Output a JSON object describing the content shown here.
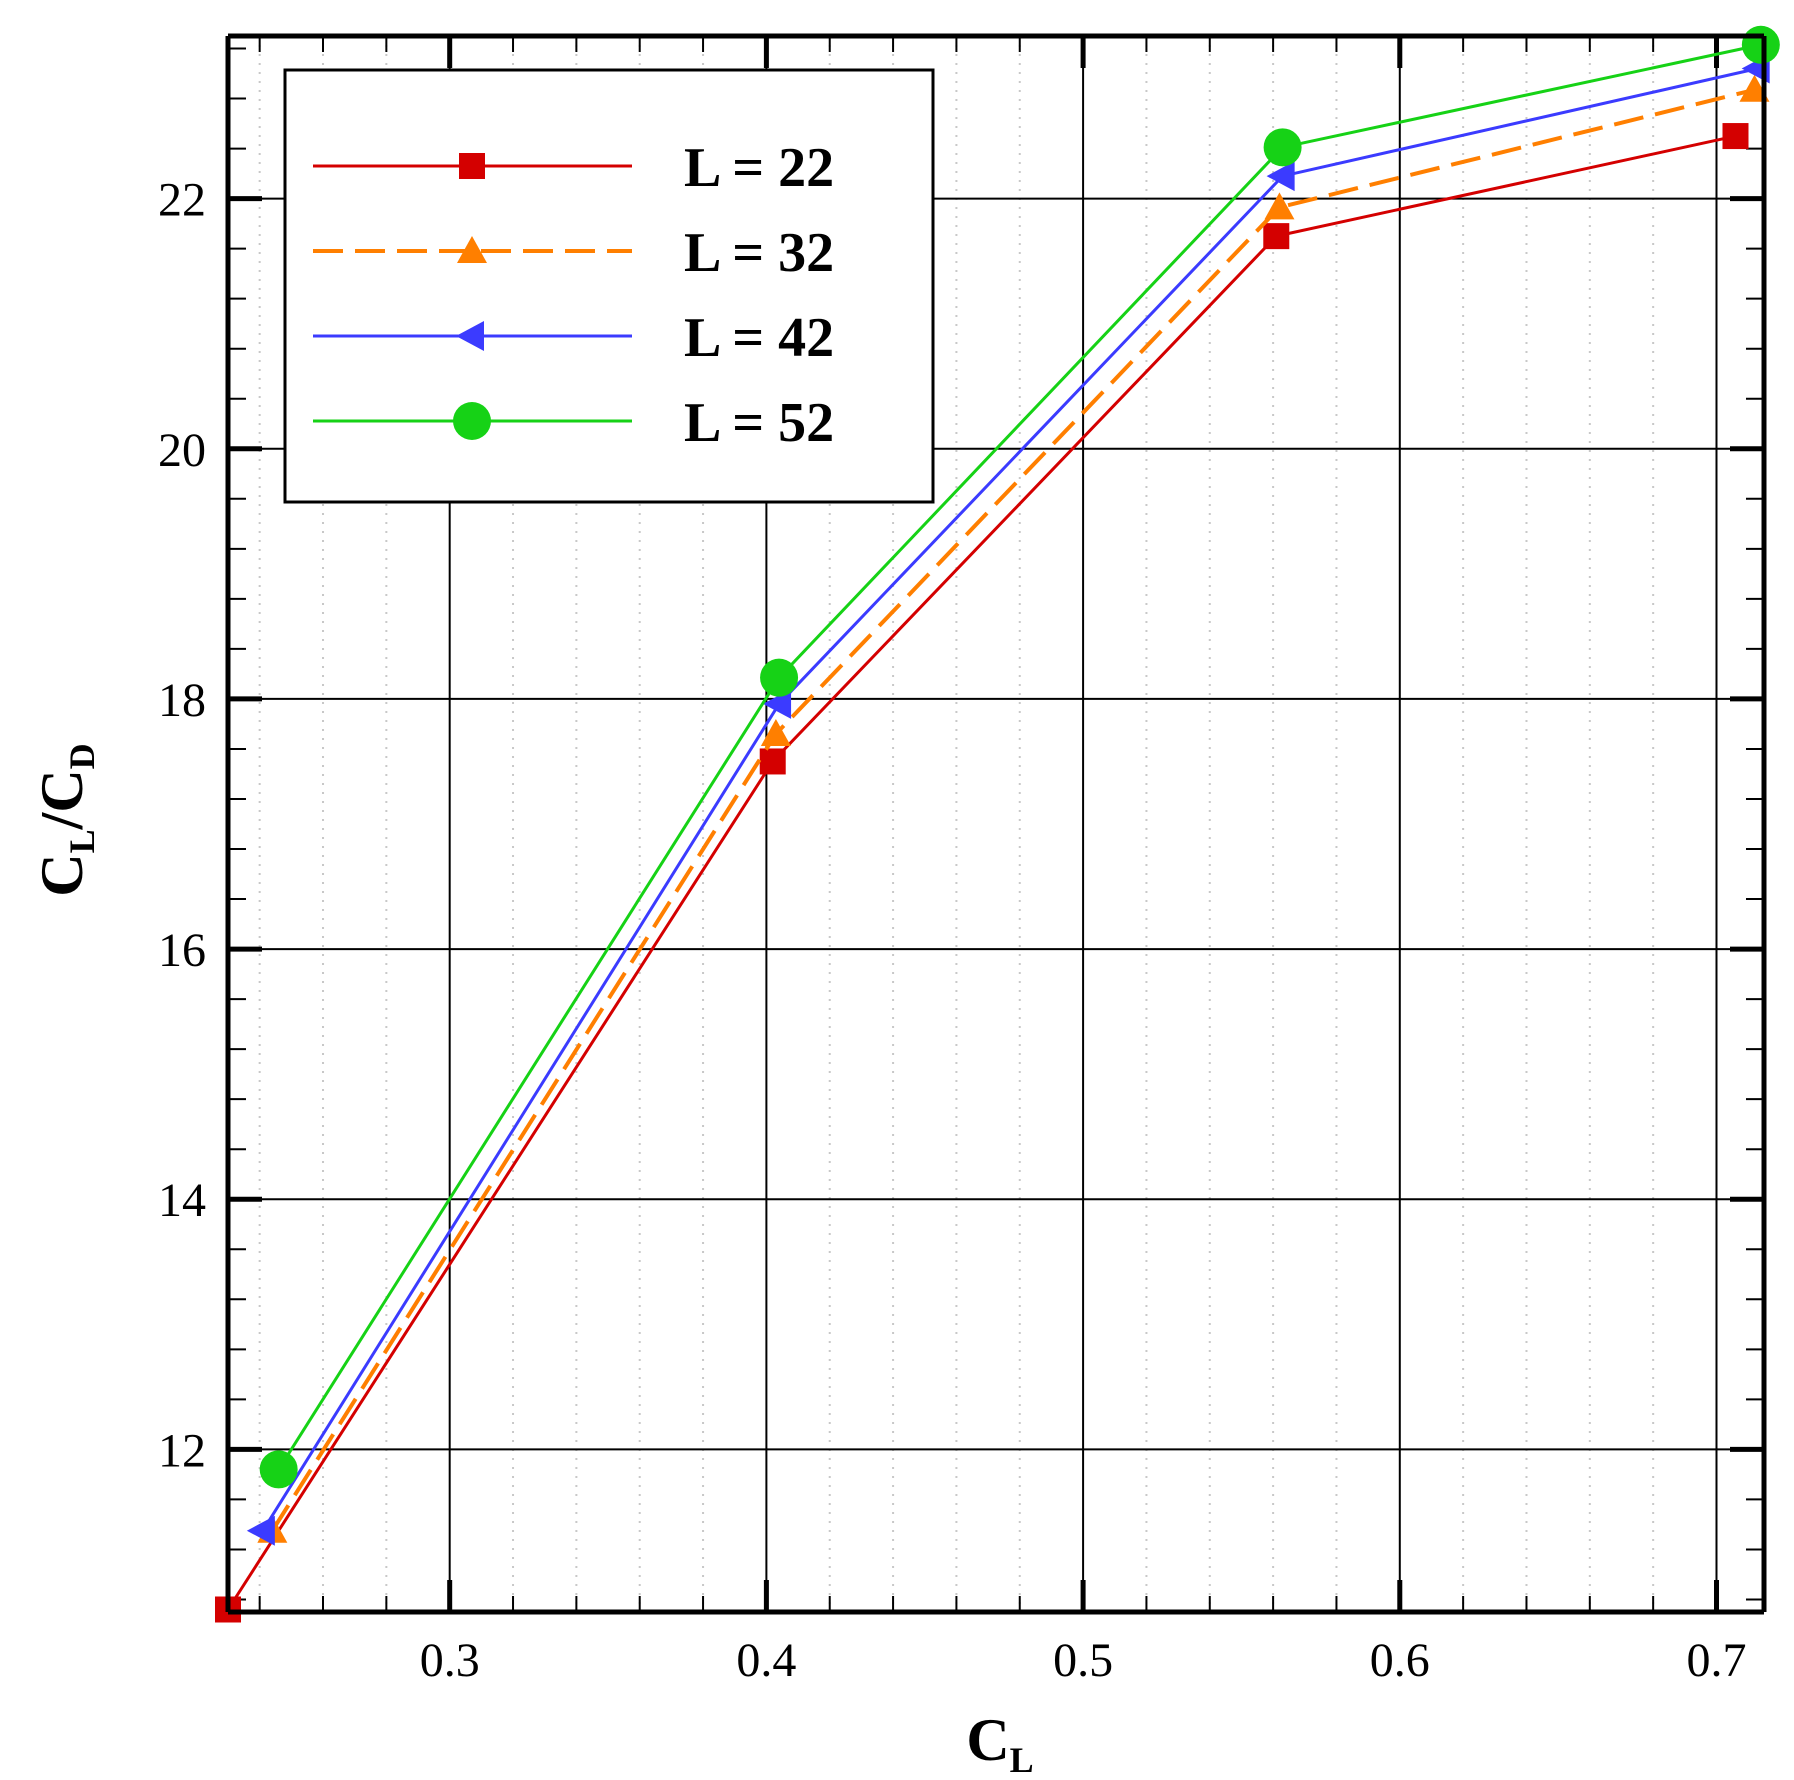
{
  "chart_data": {
    "type": "line",
    "xlabel": {
      "main": "C",
      "sub": "L"
    },
    "ylabel": {
      "num_main": "C",
      "num_sub": "L",
      "den_main": "C",
      "den_sub": "D"
    },
    "xlim": [
      0.23,
      0.715
    ],
    "ylim": [
      10.7,
      23.3
    ],
    "xticks": [
      0.3,
      0.4,
      0.5,
      0.6,
      0.7
    ],
    "xtick_labels": [
      "0.3",
      "0.4",
      "0.5",
      "0.6",
      "0.7"
    ],
    "xminor_step": 0.02,
    "yticks": [
      12,
      14,
      16,
      18,
      20,
      22
    ],
    "ytick_labels": [
      "12",
      "14",
      "16",
      "18",
      "20",
      "22"
    ],
    "yminor_step": 0.4,
    "grid": true,
    "legend_position": "top-left",
    "series": [
      {
        "name": "L = 22",
        "color": "#d40000",
        "marker": "square",
        "dash": "solid",
        "x": [
          0.23,
          0.402,
          0.561,
          0.706
        ],
        "y": [
          10.72,
          17.5,
          21.7,
          22.5
        ]
      },
      {
        "name": "L = 32",
        "color": "#ff7f00",
        "marker": "triangle-up",
        "dash": "dashed",
        "x": [
          0.244,
          0.403,
          0.562,
          0.712
        ],
        "y": [
          11.35,
          17.72,
          21.93,
          22.87
        ]
      },
      {
        "name": "L = 42",
        "color": "#3b3bff",
        "marker": "triangle-left",
        "dash": "solid",
        "x": [
          0.241,
          0.404,
          0.563,
          0.713
        ],
        "y": [
          11.35,
          17.96,
          22.18,
          23.04
        ]
      },
      {
        "name": "L = 52",
        "color": "#16d216",
        "marker": "circle",
        "dash": "solid",
        "x": [
          0.246,
          0.404,
          0.563,
          0.714
        ],
        "y": [
          11.84,
          18.17,
          22.41,
          23.23
        ]
      }
    ]
  }
}
